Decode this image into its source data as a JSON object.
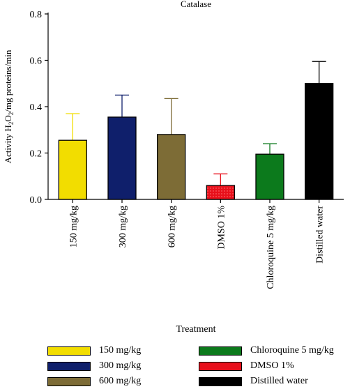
{
  "chart_data": {
    "type": "bar",
    "title": "Catalase",
    "ylabel_parts": [
      "Activity H",
      "2",
      "O",
      "2",
      "/mg proteins/min"
    ],
    "xlabel": "Treatment",
    "categories": [
      "150 mg/kg",
      "300 mg/kg",
      "600 mg/kg",
      "DMSO 1%",
      "Chloroquine 5 mg/kg",
      "Distilled water"
    ],
    "values": [
      0.255,
      0.355,
      0.28,
      0.06,
      0.195,
      0.5
    ],
    "errors": [
      0.115,
      0.095,
      0.155,
      0.05,
      0.045,
      0.095
    ],
    "colors": [
      "#f2dd00",
      "#0f1f6b",
      "#7d6c36",
      "#e8101b",
      "#0c7a1c",
      "#000000"
    ],
    "ylim": [
      0,
      0.8
    ],
    "yticks": [
      "0.0",
      "0.2",
      "0.4",
      "0.6",
      "0.8"
    ],
    "legend": [
      {
        "label": "150 mg/kg",
        "color": "#f2dd00"
      },
      {
        "label": "300 mg/kg",
        "color": "#0f1f6b"
      },
      {
        "label": "600 mg/kg",
        "color": "#7d6c36"
      },
      {
        "label": "Chloroquine 5 mg/kg",
        "color": "#0c7a1c"
      },
      {
        "label": "DMSO 1%",
        "color": "#e8101b"
      },
      {
        "label": "Distilled water",
        "color": "#000000"
      }
    ],
    "legend_placement": "bottom"
  }
}
